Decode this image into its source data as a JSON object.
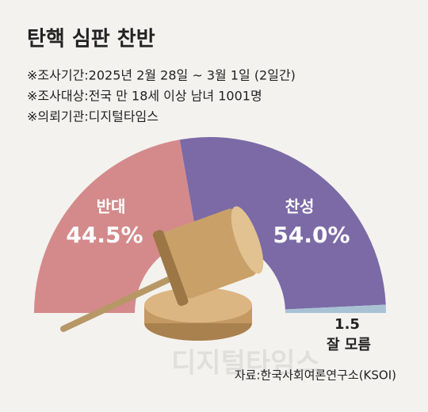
{
  "chart_data": {
    "type": "pie",
    "semicircle": true,
    "title": "탄핵 심판 찬반",
    "notes": [
      "※조사기간:2025년  2월 28일 ~ 3월  1일 (2일간)",
      "※조사대상:전국 만 18세 이상 남녀 1001명",
      "※의뢰기관:디지털타임스"
    ],
    "categories": [
      "반대",
      "찬성",
      "잘 모름"
    ],
    "values": [
      44.5,
      54.0,
      1.5
    ],
    "value_labels": [
      "44.5%",
      "54.0%",
      "1.5"
    ],
    "colors": [
      "#d48a8b",
      "#7b6aa6",
      "#a8c2d4"
    ],
    "source": "자료:한국사회여론연구소(KSOI)",
    "watermark": "디지털타임스"
  }
}
